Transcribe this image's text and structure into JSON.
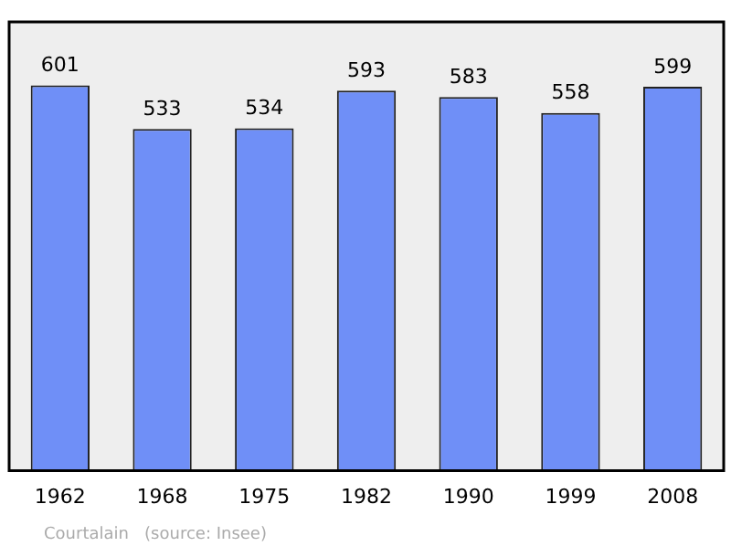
{
  "chart_data": {
    "type": "bar",
    "categories": [
      "1962",
      "1968",
      "1975",
      "1982",
      "1990",
      "1999",
      "2008"
    ],
    "values": [
      601,
      533,
      534,
      593,
      583,
      558,
      599
    ],
    "color": "#6f8ff7",
    "data_labels": true,
    "legend": false,
    "annotations": [
      "Courtalain   (source: Insee)"
    ]
  }
}
